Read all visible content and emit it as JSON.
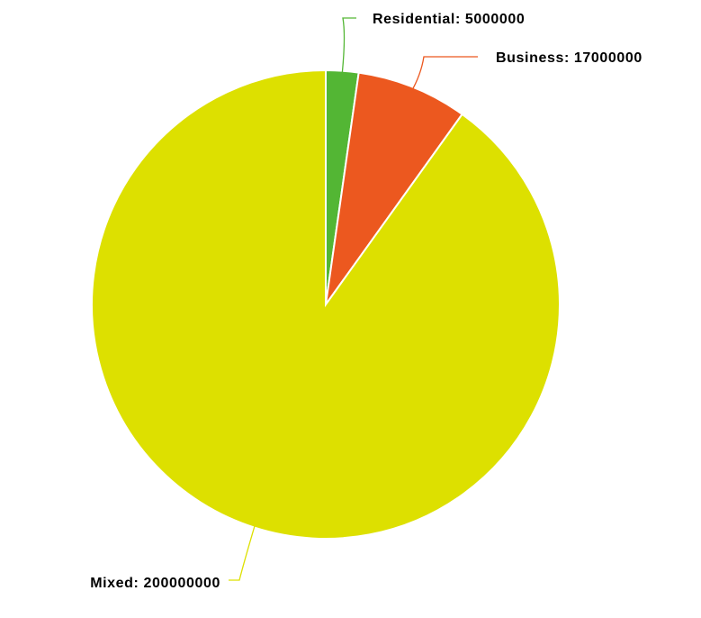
{
  "chart_data": {
    "type": "pie",
    "start_angle": "12 o'clock",
    "direction": "clockwise",
    "legend": "none",
    "slices": [
      {
        "name": "Residential",
        "value": 5000000,
        "label": "Residential: 5000000",
        "color": "#53b634"
      },
      {
        "name": "Business",
        "value": 17000000,
        "label": "Business: 17000000",
        "color": "#ec581f"
      },
      {
        "name": "Mixed",
        "value": 200000000,
        "label": "Mixed: 200000000",
        "color": "#dde000"
      }
    ]
  }
}
